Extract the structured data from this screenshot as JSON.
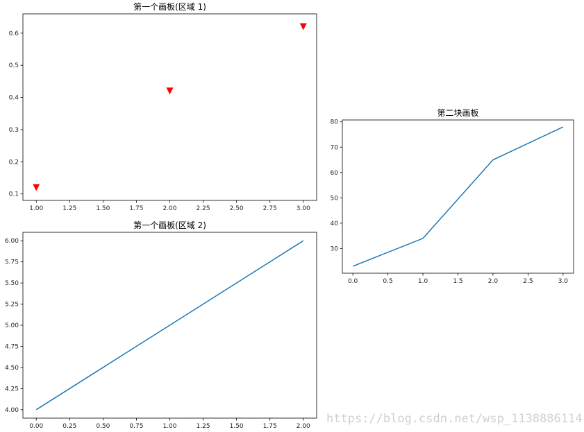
{
  "chart_data": [
    {
      "id": "c1",
      "type": "scatter",
      "title": "第一个画板(区域 1)",
      "marker": "triangle-down",
      "color": "#ff0000",
      "x": [
        1.0,
        2.0,
        3.0
      ],
      "y": [
        0.12,
        0.42,
        0.62
      ],
      "xlim": [
        0.9,
        3.1
      ],
      "ylim": [
        0.08,
        0.66
      ],
      "xticks": [
        1.0,
        1.25,
        1.5,
        1.75,
        2.0,
        2.25,
        2.5,
        2.75,
        3.0
      ],
      "xtick_labels": [
        "1.00",
        "1.25",
        "1.50",
        "1.75",
        "2.00",
        "2.25",
        "2.50",
        "2.75",
        "3.00"
      ],
      "yticks": [
        0.1,
        0.2,
        0.3,
        0.4,
        0.5,
        0.6
      ],
      "ytick_labels": [
        "0.1",
        "0.2",
        "0.3",
        "0.4",
        "0.5",
        "0.6"
      ],
      "grid": false
    },
    {
      "id": "c2",
      "type": "line",
      "title": "第一个画板(区域 2)",
      "color": "#1f77b4",
      "x": [
        0,
        2
      ],
      "y": [
        4.0,
        6.0
      ],
      "xlim": [
        -0.1,
        2.1
      ],
      "ylim": [
        3.9,
        6.1
      ],
      "xticks": [
        0,
        0.25,
        0.5,
        0.75,
        1.0,
        1.25,
        1.5,
        1.75,
        2.0
      ],
      "xtick_labels": [
        "0.00",
        "0.25",
        "0.50",
        "0.75",
        "1.00",
        "1.25",
        "1.50",
        "1.75",
        "2.00"
      ],
      "yticks": [
        4.0,
        4.25,
        4.5,
        4.75,
        5.0,
        5.25,
        5.5,
        5.75,
        6.0
      ],
      "ytick_labels": [
        "4.00",
        "4.25",
        "4.50",
        "4.75",
        "5.00",
        "5.25",
        "5.50",
        "5.75",
        "6.00"
      ],
      "grid": false
    },
    {
      "id": "c3",
      "type": "line",
      "title": "第二块画板",
      "color": "#1f77b4",
      "x": [
        0,
        1,
        2,
        3
      ],
      "y": [
        23,
        34,
        65,
        78
      ],
      "xlim": [
        -0.15,
        3.15
      ],
      "ylim": [
        20.25,
        80.75
      ],
      "xticks": [
        0,
        0.5,
        1.0,
        1.5,
        2.0,
        2.5,
        3.0
      ],
      "xtick_labels": [
        "0.0",
        "0.5",
        "1.0",
        "1.5",
        "2.0",
        "2.5",
        "3.0"
      ],
      "yticks": [
        30,
        40,
        50,
        60,
        70,
        80
      ],
      "ytick_labels": [
        "30",
        "40",
        "50",
        "60",
        "70",
        "80"
      ],
      "grid": false
    }
  ],
  "watermark": "https://blog.csdn.net/wsp_1138886114"
}
